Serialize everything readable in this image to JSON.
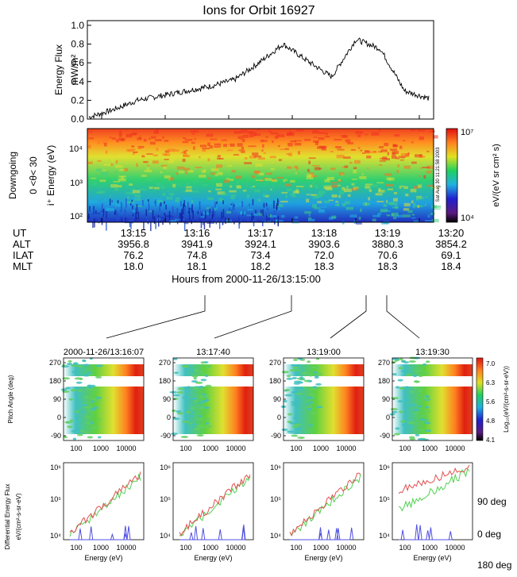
{
  "title": "Ions for Orbit 16927",
  "top_panel": {
    "ylabel": "Energy Flux",
    "yunit": "mW/m²",
    "yticks": [
      "0.0",
      "0.2",
      "0.4",
      "0.6",
      "0.8",
      "1.0"
    ]
  },
  "spectrogram": {
    "side_label_1": "Downgoing",
    "side_label_2": "0 <θ< 30",
    "energy_label": "i⁺ Energy (eV)",
    "yticks": [
      "10⁴",
      "10³",
      "10²"
    ],
    "colorbar_top": "10⁷",
    "colorbar_bottom": "10⁴",
    "colorbar_label": "eV/(eV sr cm² s)",
    "stamp": "Sat Aug 30 11:21:58 2003"
  },
  "table": {
    "row_labels": [
      "UT",
      "ALT",
      "ILAT",
      "MLT"
    ],
    "columns": [
      {
        "ut": "13:15",
        "alt": "3956.8",
        "ilat": "76.2",
        "mlt": "18.0"
      },
      {
        "ut": "13:16",
        "alt": "3941.9",
        "ilat": "74.8",
        "mlt": "18.1"
      },
      {
        "ut": "13:17",
        "alt": "3924.1",
        "ilat": "73.4",
        "mlt": "18.2"
      },
      {
        "ut": "13:18",
        "alt": "3903.6",
        "ilat": "72.0",
        "mlt": "18.3"
      },
      {
        "ut": "13:19",
        "alt": "3880.3",
        "ilat": "70.6",
        "mlt": "18.3"
      },
      {
        "ut": "13:20",
        "alt": "3854.2",
        "ilat": "69.1",
        "mlt": "18.4"
      }
    ],
    "xlabel": "Hours from 2000-11-26/13:15:00"
  },
  "small_panels": {
    "titles": [
      "2000-11-26/13:16:07",
      "13:17:40",
      "13:19:00",
      "13:19:30"
    ],
    "pitch_ylabel": "Pitch Angle (deg)",
    "pitch_yticks": [
      "270",
      "180",
      "90",
      "0",
      "-90"
    ],
    "energy_xticks": [
      "100",
      "1000",
      "10000"
    ],
    "pitch_colorbar_ticks": [
      "7.0",
      "6.3",
      "5.6",
      "4.8",
      "4.1"
    ],
    "pitch_colorbar_label": "Log₁₀(eV/(cm²-s-sr-eV))",
    "flux_ylabel_1": "Differential Energy Flux",
    "flux_ylabel_2": "eV/(cm²-s-sr-eV)",
    "flux_yticks": [
      "10⁶",
      "10⁵",
      "10⁴"
    ],
    "xlabel": "Energy   (eV)",
    "legend": [
      {
        "label": "90 deg",
        "color": "#e05050"
      },
      {
        "label": "0 deg",
        "color": "#50d050"
      },
      {
        "label": "180 deg",
        "color": "#5050e0"
      }
    ]
  },
  "chart_data": [
    {
      "type": "line",
      "title": "Ions for Orbit 16927",
      "ylabel": "Energy Flux mW/m²",
      "xlabel": "Hours from 2000-11-26/13:15:00",
      "x": [
        "13:15",
        "13:15:30",
        "13:16",
        "13:16:30",
        "13:17",
        "13:17:30",
        "13:18",
        "13:18:20",
        "13:18:40",
        "13:19",
        "13:19:15",
        "13:19:30",
        "13:19:45",
        "13:20",
        "13:20:15"
      ],
      "values": [
        0.02,
        0.1,
        0.2,
        0.25,
        0.3,
        0.35,
        0.42,
        0.6,
        0.8,
        0.62,
        0.45,
        0.85,
        0.75,
        0.3,
        0.22
      ],
      "ylim": [
        0,
        1.05
      ]
    },
    {
      "type": "heatmap",
      "title": "",
      "ylabel": "i⁺ Energy (eV)",
      "colorbar_range": [
        "10⁴",
        "10⁷"
      ],
      "colorbar_label": "eV/(eV sr cm² s)"
    },
    {
      "type": "table",
      "columns": [
        "UT",
        "ALT",
        "ILAT",
        "MLT"
      ],
      "rows": [
        [
          "13:15",
          "3956.8",
          "76.2",
          "18.0"
        ],
        [
          "13:16",
          "3941.9",
          "74.8",
          "18.1"
        ],
        [
          "13:17",
          "3924.1",
          "73.4",
          "18.2"
        ],
        [
          "13:18",
          "3903.6",
          "72.0",
          "18.3"
        ],
        [
          "13:19",
          "3880.3",
          "70.6",
          "18.3"
        ],
        [
          "13:20",
          "3854.2",
          "69.1",
          "18.4"
        ]
      ]
    },
    {
      "type": "line",
      "panels": [
        "2000-11-26/13:16:07",
        "13:17:40",
        "13:19:00",
        "13:19:30"
      ],
      "xlabel": "Energy   (eV)",
      "ylabel": "Differential Energy Flux eV/(cm²-s-sr-eV)",
      "series": [
        {
          "name": "90 deg",
          "color": "#e05050"
        },
        {
          "name": "0 deg",
          "color": "#50d050"
        },
        {
          "name": "180 deg",
          "color": "#5050e0"
        }
      ]
    }
  ]
}
